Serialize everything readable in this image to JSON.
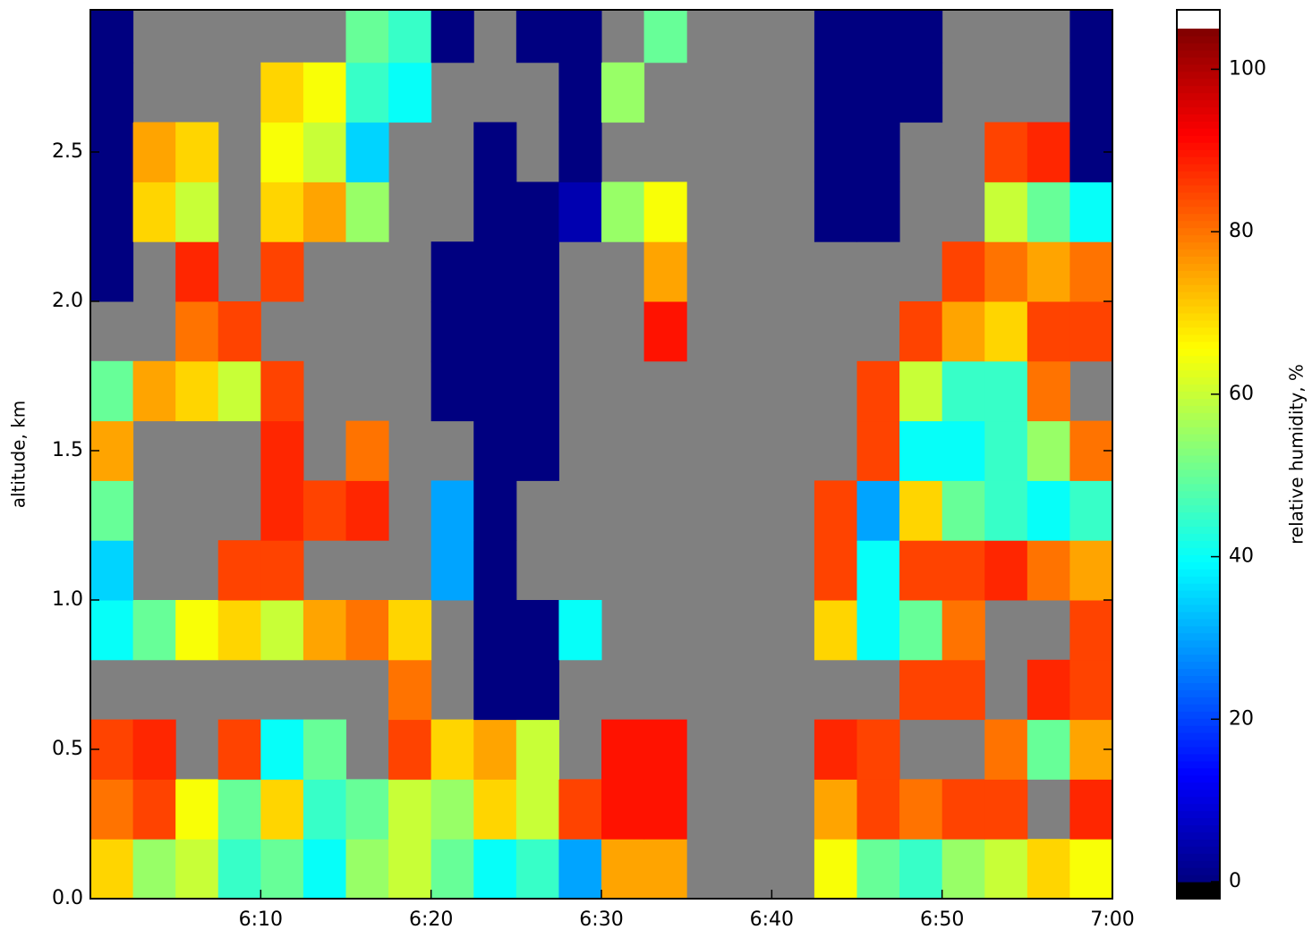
{
  "chart_data": {
    "type": "heatmap",
    "xlabel": null,
    "ylabel": "altitude, km",
    "colorbar_label": "relative humidity, %",
    "xbins": [
      0,
      2.5,
      5,
      7.5,
      10,
      12.5,
      15,
      17.5,
      20,
      22.5,
      25,
      27.5,
      30,
      32.5,
      35,
      37.5,
      40,
      42.5,
      45,
      47.5,
      50,
      52.5,
      55,
      57.5,
      60
    ],
    "ybins": [
      0,
      0.2,
      0.4,
      0.6,
      0.8,
      1.0,
      1.2,
      1.4,
      1.6,
      1.8,
      2.0,
      2.2,
      2.4,
      2.6,
      2.8,
      3.0
    ],
    "xlim": [
      0,
      60
    ],
    "ylim": [
      0,
      2.976
    ],
    "xticks": [
      {
        "value": 10,
        "label": "6:10"
      },
      {
        "value": 20,
        "label": "6:20"
      },
      {
        "value": 30,
        "label": "6:30"
      },
      {
        "value": 40,
        "label": "6:40"
      },
      {
        "value": 50,
        "label": "6:50"
      },
      {
        "value": 60,
        "label": "7:00"
      }
    ],
    "yticks": [
      {
        "value": 0,
        "label": "0.0"
      },
      0.5,
      {
        "value": 1,
        "label": "1.0"
      },
      1.5,
      {
        "value": 2,
        "label": "2.0"
      },
      2.5
    ],
    "clim": [
      0,
      105
    ],
    "cticks": [
      0,
      20,
      40,
      60,
      80,
      100
    ],
    "missing_color": "#808080",
    "z": [
      [
        70,
        55,
        60,
        45,
        50,
        40,
        55,
        60,
        50,
        40,
        45,
        30,
        75,
        75,
        null,
        null,
        null,
        65,
        50,
        45,
        55,
        60,
        70,
        65
      ],
      [
        80,
        85,
        65,
        50,
        70,
        45,
        50,
        60,
        55,
        70,
        60,
        85,
        90,
        90,
        null,
        null,
        null,
        75,
        85,
        80,
        85,
        85,
        null,
        88
      ],
      [
        85,
        88,
        null,
        85,
        40,
        50,
        null,
        85,
        70,
        75,
        60,
        null,
        90,
        90,
        null,
        null,
        null,
        88,
        85,
        null,
        null,
        80,
        50,
        75
      ],
      [
        null,
        null,
        null,
        null,
        null,
        null,
        null,
        80,
        null,
        0,
        0,
        null,
        null,
        null,
        null,
        null,
        null,
        null,
        null,
        85,
        85,
        null,
        88,
        85
      ],
      [
        40,
        50,
        65,
        70,
        60,
        75,
        80,
        70,
        null,
        0,
        0,
        40,
        null,
        null,
        null,
        null,
        null,
        70,
        40,
        50,
        80,
        null,
        null,
        85
      ],
      [
        35,
        null,
        null,
        85,
        85,
        null,
        null,
        null,
        30,
        0,
        null,
        null,
        null,
        null,
        null,
        null,
        null,
        85,
        40,
        85,
        85,
        88,
        80,
        75
      ],
      [
        50,
        null,
        null,
        null,
        88,
        85,
        88,
        null,
        30,
        0,
        null,
        null,
        null,
        null,
        null,
        null,
        null,
        85,
        30,
        70,
        50,
        45,
        40,
        45
      ],
      [
        75,
        null,
        null,
        null,
        88,
        null,
        80,
        null,
        null,
        0,
        0,
        null,
        null,
        null,
        null,
        null,
        null,
        null,
        85,
        40,
        40,
        45,
        55,
        80
      ],
      [
        50,
        75,
        70,
        60,
        85,
        null,
        null,
        null,
        0,
        0,
        0,
        null,
        null,
        null,
        null,
        null,
        null,
        null,
        85,
        60,
        45,
        45,
        80,
        null
      ],
      [
        null,
        null,
        80,
        85,
        null,
        null,
        null,
        null,
        0,
        0,
        0,
        null,
        null,
        90,
        null,
        null,
        null,
        null,
        null,
        85,
        75,
        70,
        85,
        85
      ],
      [
        0,
        null,
        88,
        null,
        85,
        null,
        null,
        null,
        0,
        0,
        0,
        null,
        null,
        75,
        null,
        null,
        null,
        null,
        null,
        null,
        85,
        80,
        75,
        80
      ],
      [
        0,
        70,
        60,
        null,
        70,
        75,
        55,
        null,
        null,
        0,
        0,
        5,
        55,
        65,
        null,
        null,
        null,
        0,
        0,
        null,
        null,
        60,
        50,
        40
      ],
      [
        0,
        75,
        70,
        null,
        65,
        60,
        35,
        null,
        null,
        0,
        null,
        0,
        null,
        null,
        null,
        null,
        null,
        0,
        0,
        null,
        null,
        85,
        88,
        0
      ],
      [
        0,
        null,
        null,
        null,
        70,
        65,
        45,
        40,
        null,
        null,
        null,
        0,
        55,
        null,
        null,
        null,
        null,
        0,
        0,
        0,
        null,
        null,
        null,
        0
      ],
      [
        0,
        null,
        null,
        null,
        null,
        null,
        50,
        45,
        0,
        null,
        0,
        0,
        null,
        50,
        null,
        null,
        null,
        0,
        0,
        0,
        null,
        null,
        null,
        0
      ]
    ]
  }
}
